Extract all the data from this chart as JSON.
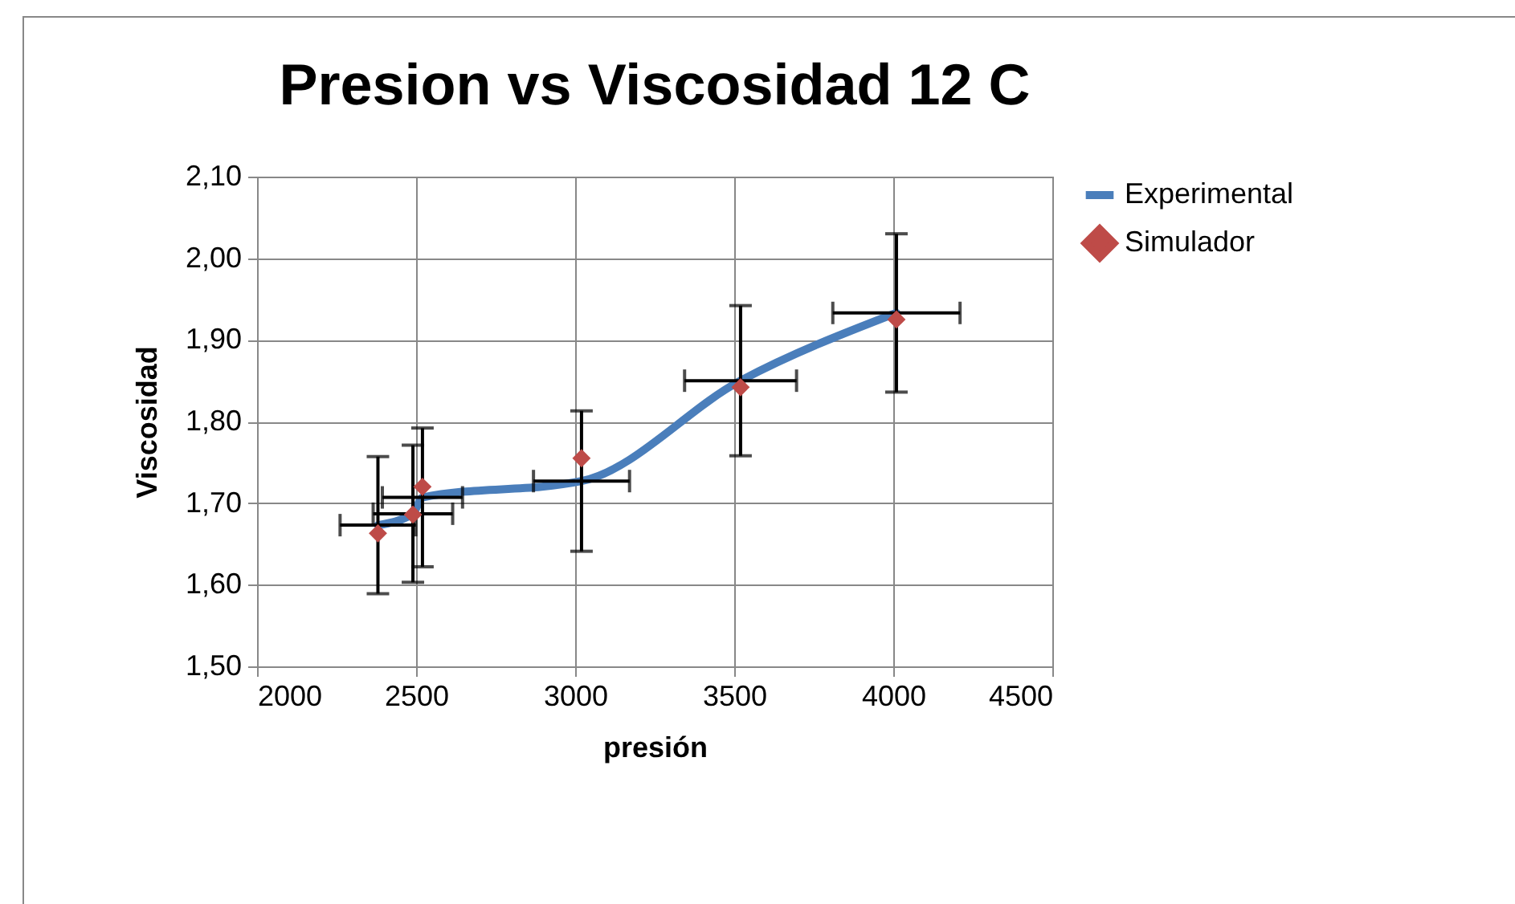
{
  "chart_data": {
    "type": "line",
    "title": "Presion vs Viscosidad 12 C",
    "xlabel": "presión",
    "ylabel": "Viscosidad",
    "x": [
      2380,
      2490,
      2520,
      3020,
      3520,
      4010
    ],
    "series": [
      {
        "name": "Experimental",
        "type": "line",
        "color": "#4a7ebb",
        "values": [
          1.673,
          1.687,
          1.707,
          1.727,
          1.85,
          1.933
        ],
        "errors": [
          0.084,
          0.084,
          0.085,
          0.086,
          0.092,
          0.097
        ],
        "xerrors": [
          119,
          125,
          126,
          151,
          176,
          200
        ]
      },
      {
        "name": "Simulador",
        "type": "scatter",
        "marker": "diamond",
        "color": "#be4b48",
        "values": [
          1.663,
          1.686,
          1.72,
          1.755,
          1.842,
          1.925
        ]
      }
    ],
    "xlim": [
      2000,
      4500
    ],
    "xticks": [
      2000,
      2500,
      3000,
      3500,
      4000,
      4500
    ],
    "ylim": [
      1.5,
      2.1
    ],
    "yticks": [
      {
        "value": 1.5,
        "label": "1,50"
      },
      {
        "value": 1.6,
        "label": "1,60"
      },
      {
        "value": 1.7,
        "label": "1,70"
      },
      {
        "value": 1.8,
        "label": "1,80"
      },
      {
        "value": 1.9,
        "label": "1,90"
      },
      {
        "value": 2.0,
        "label": "2,00"
      },
      {
        "value": 2.1,
        "label": "2,10"
      }
    ],
    "grid": true,
    "legend": "right"
  }
}
